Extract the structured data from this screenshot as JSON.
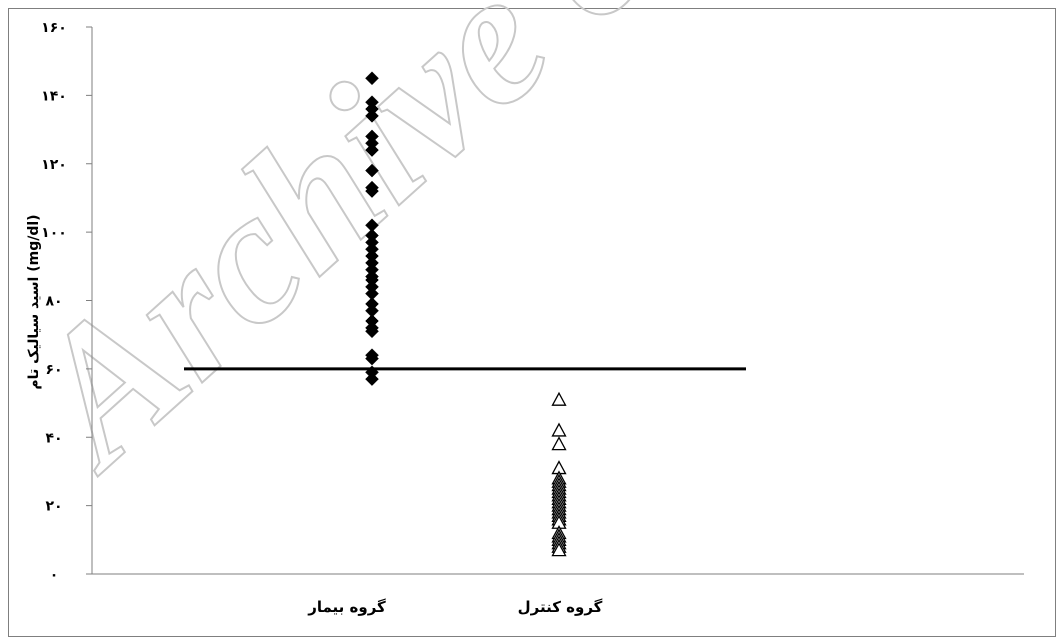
{
  "watermark": "Archive of SID",
  "chart_data": {
    "type": "scatter",
    "ylabel": "اسید سیالیک تام (mg/dl)",
    "ylim": [
      0,
      160
    ],
    "yticks": [
      0,
      20,
      40,
      60,
      80,
      100,
      120,
      140,
      160
    ],
    "ytick_labels": [
      "۰",
      "۲۰",
      "۴۰",
      "۶۰",
      "۸۰",
      "۱۰۰",
      "۱۲۰",
      "۱۴۰",
      "۱۶۰"
    ],
    "categories": [
      "گروه بیمار",
      "گروه کنترل"
    ],
    "threshold": 60,
    "grid": false,
    "series": [
      {
        "category": "گروه بیمار",
        "marker": "diamond",
        "color": "#000000",
        "values": [
          145,
          138,
          136,
          134,
          128,
          126,
          124,
          118,
          113,
          112,
          102,
          99,
          97,
          95,
          93,
          91,
          89,
          87,
          86,
          84,
          82,
          79,
          77,
          74,
          72,
          71,
          64,
          63,
          59,
          57
        ]
      },
      {
        "category": "گروه کنترل",
        "marker": "triangle-open",
        "color": "#000000",
        "values": [
          51,
          42,
          38,
          31,
          28,
          27,
          26,
          25,
          24,
          23,
          22,
          21,
          20,
          19,
          18,
          17,
          16,
          15,
          12,
          11,
          10,
          9,
          8,
          7
        ]
      }
    ]
  }
}
